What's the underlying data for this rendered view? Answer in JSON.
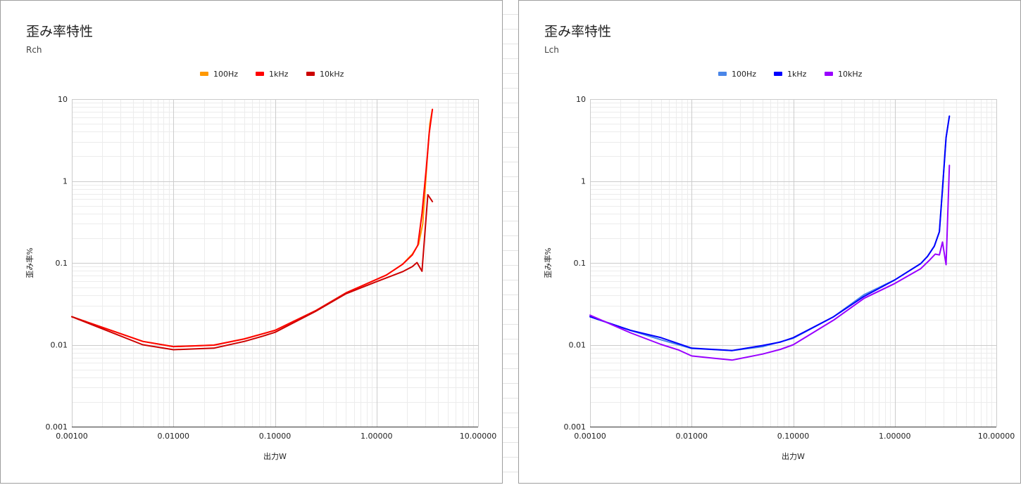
{
  "chart_data": [
    {
      "type": "line",
      "title": "歪み率特性",
      "subtitle": "Rch",
      "xlabel": "出力W",
      "ylabel": "歪み率%",
      "x_scale": "log",
      "y_scale": "log",
      "xlim": [
        0.001,
        10
      ],
      "ylim": [
        0.001,
        10
      ],
      "x_ticks": [
        "0.00100",
        "0.01000",
        "0.10000",
        "1.00000",
        "10.00000"
      ],
      "y_ticks": [
        "0.001",
        "0.01",
        "0.1",
        "1",
        "10"
      ],
      "legend_position": "top",
      "grid": true,
      "series": [
        {
          "name": "100Hz",
          "color": "#ff9900",
          "points": [
            [
              0.001,
              0.022
            ],
            [
              0.005,
              0.011
            ],
            [
              0.01,
              0.0095
            ],
            [
              0.025,
              0.0099
            ],
            [
              0.05,
              0.0118
            ],
            [
              0.1,
              0.015
            ],
            [
              0.25,
              0.026
            ],
            [
              0.5,
              0.043
            ],
            [
              1.25,
              0.071
            ],
            [
              1.8,
              0.096
            ],
            [
              2.25,
              0.128
            ],
            [
              2.6,
              0.17
            ],
            [
              2.85,
              0.3
            ],
            [
              3.15,
              1.8
            ],
            [
              3.35,
              5.0
            ],
            [
              3.55,
              7.5
            ]
          ]
        },
        {
          "name": "1kHz",
          "color": "#ff0000",
          "points": [
            [
              0.001,
              0.022
            ],
            [
              0.005,
              0.011
            ],
            [
              0.01,
              0.0095
            ],
            [
              0.025,
              0.0099
            ],
            [
              0.05,
              0.0118
            ],
            [
              0.1,
              0.015
            ],
            [
              0.25,
              0.026
            ],
            [
              0.5,
              0.043
            ],
            [
              1.25,
              0.071
            ],
            [
              1.8,
              0.096
            ],
            [
              2.25,
              0.125
            ],
            [
              2.55,
              0.165
            ],
            [
              2.8,
              0.4
            ],
            [
              3.1,
              1.5
            ],
            [
              3.3,
              3.8
            ],
            [
              3.55,
              7.5
            ]
          ]
        },
        {
          "name": "10kHz",
          "color": "#cc0000",
          "points": [
            [
              0.001,
              0.022
            ],
            [
              0.005,
              0.01
            ],
            [
              0.01,
              0.0087
            ],
            [
              0.025,
              0.0091
            ],
            [
              0.05,
              0.011
            ],
            [
              0.075,
              0.0127
            ],
            [
              0.1,
              0.0142
            ],
            [
              0.25,
              0.0255
            ],
            [
              0.5,
              0.042
            ],
            [
              1.0,
              0.059
            ],
            [
              1.8,
              0.078
            ],
            [
              2.25,
              0.09
            ],
            [
              2.5,
              0.101
            ],
            [
              2.8,
              0.079
            ],
            [
              3.2,
              0.68
            ],
            [
              3.55,
              0.56
            ]
          ]
        }
      ]
    },
    {
      "type": "line",
      "title": "歪み率特性",
      "subtitle": "Lch",
      "xlabel": "出力W",
      "ylabel": "歪み率%",
      "x_scale": "log",
      "y_scale": "log",
      "xlim": [
        0.001,
        10
      ],
      "ylim": [
        0.001,
        10
      ],
      "x_ticks": [
        "0.00100",
        "0.01000",
        "0.10000",
        "1.00000",
        "10.00000"
      ],
      "y_ticks": [
        "0.001",
        "0.01",
        "0.1",
        "1",
        "10"
      ],
      "legend_position": "top",
      "grid": true,
      "series": [
        {
          "name": "100Hz",
          "color": "#4a86e8",
          "points": [
            [
              0.001,
              0.022
            ],
            [
              0.0025,
              0.015
            ],
            [
              0.005,
              0.0115
            ],
            [
              0.01,
              0.009
            ],
            [
              0.025,
              0.0085
            ],
            [
              0.05,
              0.0095
            ],
            [
              0.1,
              0.012
            ],
            [
              0.25,
              0.022
            ],
            [
              0.5,
              0.041
            ],
            [
              1.0,
              0.062
            ],
            [
              1.8,
              0.098
            ],
            [
              2.1,
              0.12
            ],
            [
              2.45,
              0.16
            ],
            [
              2.75,
              0.24
            ],
            [
              2.95,
              0.8
            ],
            [
              3.2,
              3.4
            ],
            [
              3.45,
              6.2
            ]
          ]
        },
        {
          "name": "1kHz",
          "color": "#0000ff",
          "points": [
            [
              0.001,
              0.022
            ],
            [
              0.0025,
              0.015
            ],
            [
              0.005,
              0.0122
            ],
            [
              0.01,
              0.0091
            ],
            [
              0.025,
              0.0085
            ],
            [
              0.05,
              0.0098
            ],
            [
              0.075,
              0.0108
            ],
            [
              0.1,
              0.0122
            ],
            [
              0.25,
              0.022
            ],
            [
              0.5,
              0.039
            ],
            [
              1.0,
              0.062
            ],
            [
              1.8,
              0.098
            ],
            [
              2.1,
              0.12
            ],
            [
              2.45,
              0.16
            ],
            [
              2.75,
              0.24
            ],
            [
              2.95,
              0.8
            ],
            [
              3.2,
              3.4
            ],
            [
              3.45,
              6.2
            ]
          ]
        },
        {
          "name": "10kHz",
          "color": "#9900ff",
          "points": [
            [
              0.001,
              0.023
            ],
            [
              0.0025,
              0.014
            ],
            [
              0.005,
              0.0101
            ],
            [
              0.0075,
              0.0086
            ],
            [
              0.01,
              0.0073
            ],
            [
              0.025,
              0.0065
            ],
            [
              0.05,
              0.0077
            ],
            [
              0.075,
              0.0088
            ],
            [
              0.1,
              0.01
            ],
            [
              0.25,
              0.02
            ],
            [
              0.5,
              0.037
            ],
            [
              1.0,
              0.056
            ],
            [
              1.8,
              0.085
            ],
            [
              2.2,
              0.108
            ],
            [
              2.5,
              0.128
            ],
            [
              2.75,
              0.125
            ],
            [
              2.95,
              0.18
            ],
            [
              3.2,
              0.095
            ],
            [
              3.45,
              1.55
            ]
          ]
        }
      ]
    }
  ]
}
